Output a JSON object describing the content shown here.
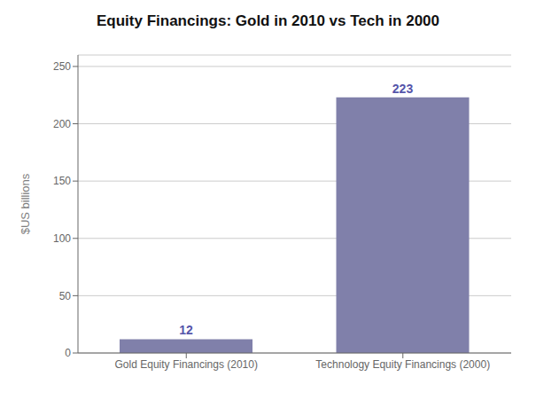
{
  "chart_data": {
    "type": "bar",
    "title": "Equity Financings: Gold in 2010 vs Tech in 2000",
    "categories": [
      "Gold Equity Financings (2010)",
      "Technology Equity Financings (2000)"
    ],
    "values": [
      12,
      223
    ],
    "color": "#8080aa",
    "ylabel": "$US billions",
    "ylim": [
      0,
      260
    ],
    "yticks": [
      0,
      50,
      100,
      150,
      200,
      250
    ],
    "grid": true,
    "data_labels": true
  }
}
